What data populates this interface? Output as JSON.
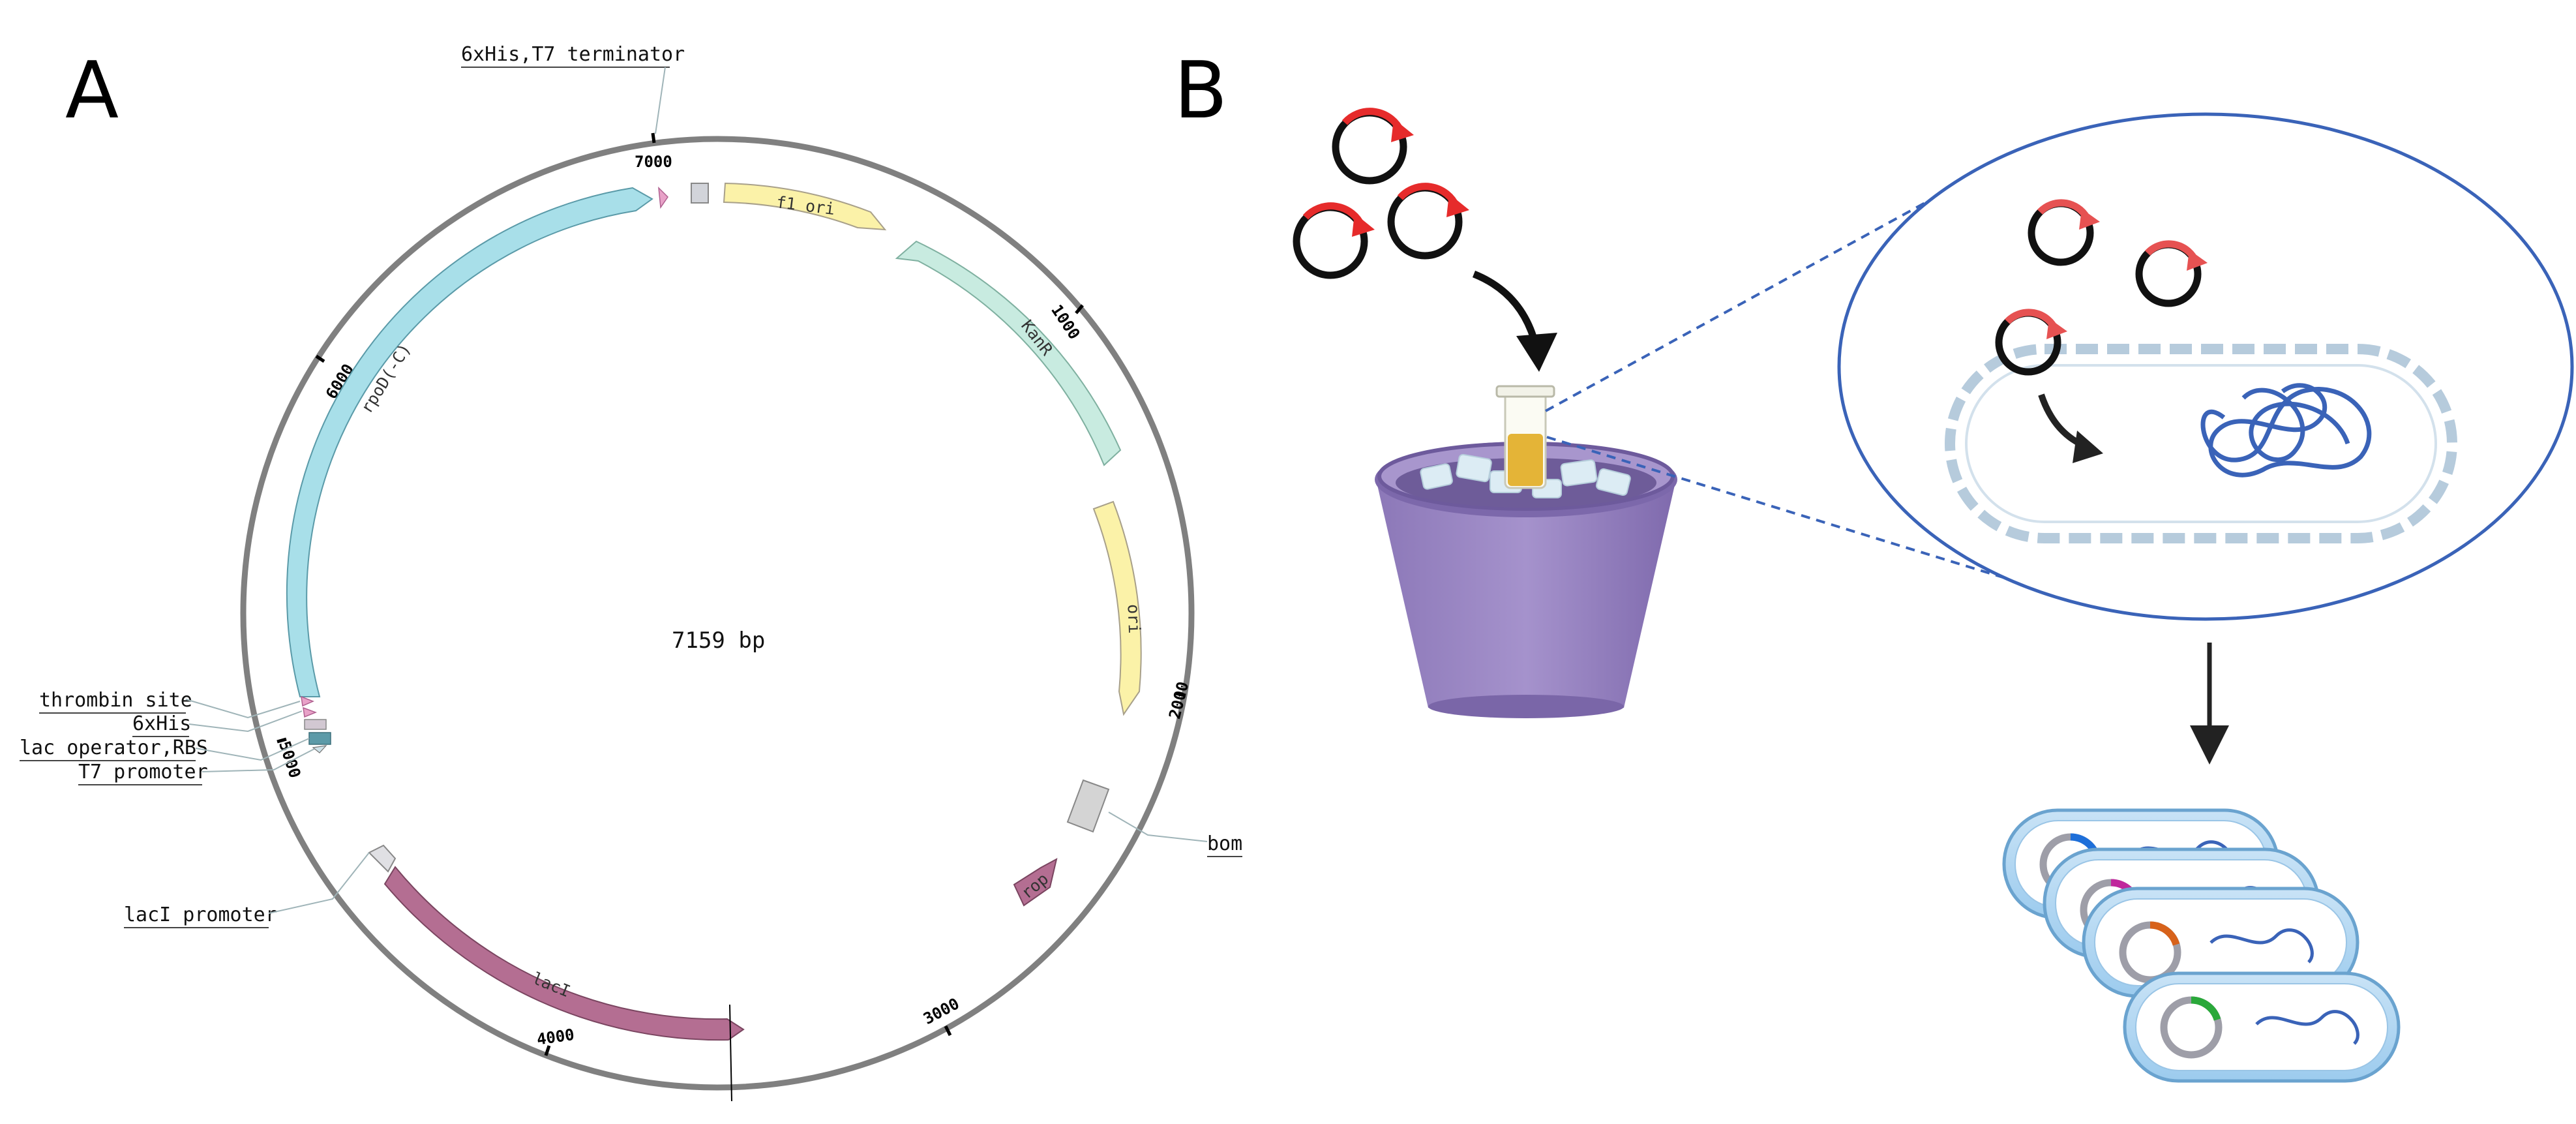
{
  "panels": {
    "a": "A",
    "b": "B"
  },
  "plasmid": {
    "size_label": "7159 bp",
    "ticks": [
      "1000",
      "2000",
      "3000",
      "4000",
      "5000",
      "6000",
      "7000"
    ],
    "features": {
      "f1_ori": "f1 ori",
      "kanr": "KanR",
      "ori": "ori",
      "rop": "rop",
      "laci": "lacI",
      "rpod": "rpoD(-C)"
    },
    "callouts": {
      "his_t7_term": "6xHis,T7 terminator",
      "thrombin": "thrombin site",
      "his6": "6xHis",
      "lac_op_rbs": "lac operator,RBS",
      "t7_promoter": "T7 promoter",
      "laci_promoter": "lacI promoter",
      "bom": "bom"
    }
  },
  "colors": {
    "backbone": "#808080",
    "yellow_feature": "#fbf2a8",
    "teal_feature": "#c8ebe0",
    "blue_feature": "#a8dfe9",
    "magenta_feature": "#b46e92",
    "plasmid_arrow": "#e62b2b",
    "circle_outline": "#3a63b8",
    "bucket": "#9b87c2"
  },
  "transformants": {
    "plasmid_colors": [
      "#1e6fd9",
      "#c0289c",
      "#d7621b",
      "#2aa83a"
    ]
  }
}
